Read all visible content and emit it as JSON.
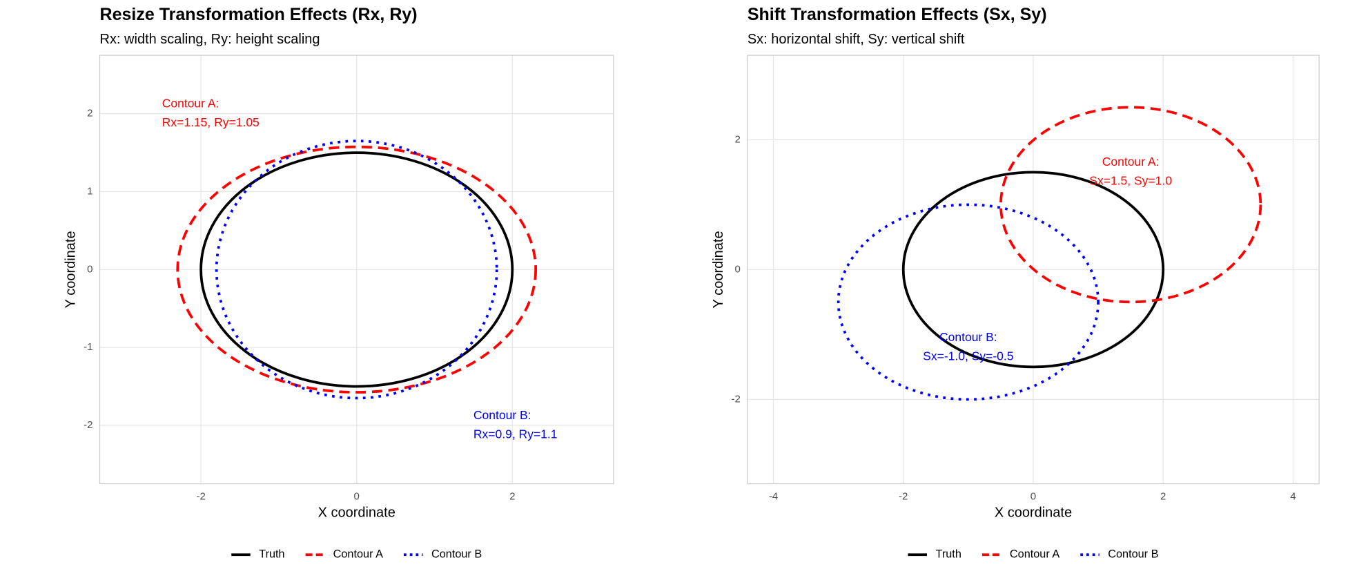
{
  "chart_data": [
    {
      "type": "ellipse",
      "title": "Resize Transformation Effects (Rx, Ry)",
      "subtitle": "Rx: width scaling, Ry: height scaling",
      "x_label": "X coordinate",
      "y_label": "Y coordinate",
      "xlim": [
        -3.3,
        3.3
      ],
      "ylim": [
        -2.75,
        2.75
      ],
      "xticks": [
        -2,
        0,
        2
      ],
      "yticks": [
        -2,
        -1,
        0,
        1,
        2
      ],
      "grid": true,
      "legend": "bottom",
      "series": [
        {
          "name": "Truth",
          "color": "#000000",
          "dash": "solid",
          "cx": 0,
          "cy": 0,
          "rx": 2,
          "ry": 1.5
        },
        {
          "name": "Contour A",
          "color": "#ff0000",
          "dash": "dashed",
          "cx": 0,
          "cy": 0,
          "rx": 2.3,
          "ry": 1.575
        },
        {
          "name": "Contour B",
          "color": "#0000ff",
          "dash": "dotted",
          "cx": 0,
          "cy": 0,
          "rx": 1.8,
          "ry": 1.65
        }
      ],
      "annotations": [
        {
          "lines": [
            "Contour A:",
            "Rx=1.15, Ry=1.05"
          ],
          "x": -2.5,
          "y": 2.0,
          "color": "#ff0000",
          "align": "left"
        },
        {
          "lines": [
            "Contour B:",
            "Rx=0.9, Ry=1.1"
          ],
          "x": 1.5,
          "y": -2.0,
          "color": "#0000ff",
          "align": "left"
        }
      ]
    },
    {
      "type": "ellipse",
      "title": "Shift Transformation Effects (Sx, Sy)",
      "subtitle": "Sx: horizontal shift, Sy: vertical shift",
      "x_label": "X coordinate",
      "y_label": "Y coordinate",
      "xlim": [
        -4.4,
        4.4
      ],
      "ylim": [
        -3.3,
        3.3
      ],
      "xticks": [
        -4,
        -2,
        0,
        2,
        4
      ],
      "yticks": [
        -2,
        0,
        2
      ],
      "grid": true,
      "legend": "bottom",
      "series": [
        {
          "name": "Truth",
          "color": "#000000",
          "dash": "solid",
          "cx": 0,
          "cy": 0,
          "rx": 2,
          "ry": 1.5
        },
        {
          "name": "Contour A",
          "color": "#ff0000",
          "dash": "dashed",
          "cx": 1.5,
          "cy": 1.0,
          "rx": 2,
          "ry": 1.5
        },
        {
          "name": "Contour B",
          "color": "#0000ff",
          "dash": "dotted",
          "cx": -1.0,
          "cy": -0.5,
          "rx": 2,
          "ry": 1.5
        }
      ],
      "annotations": [
        {
          "lines": [
            "Contour A:",
            "Sx=1.5, Sy=1.0"
          ],
          "x": 1.5,
          "y": 1.5,
          "color": "#ff0000",
          "align": "center"
        },
        {
          "lines": [
            "Contour B:",
            "Sx=-1.0, Sy=-0.5"
          ],
          "x": -1.0,
          "y": -1.2,
          "color": "#0000ff",
          "align": "center"
        }
      ]
    }
  ]
}
